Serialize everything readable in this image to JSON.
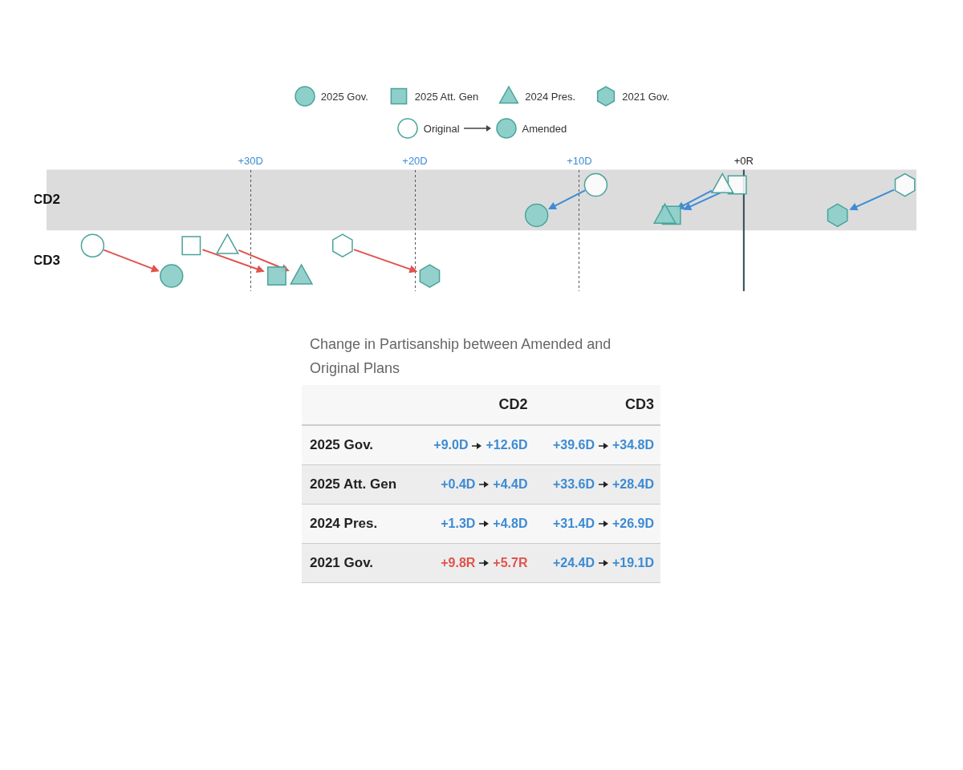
{
  "chart_data": [
    {
      "type": "scatter",
      "categories": [
        "CD2",
        "CD3"
      ],
      "orientation": "horizontal",
      "xlim": [
        -42.4,
        10.5
      ],
      "xticks": [
        {
          "value": -30,
          "label": "+30D"
        },
        {
          "value": -20,
          "label": "+20D"
        },
        {
          "value": -10,
          "label": "+10D"
        },
        {
          "value": 0,
          "label": "+0R"
        }
      ],
      "grid": "x",
      "ref_lines": [
        {
          "axis": "x",
          "value": 0,
          "color": "#2f4a55"
        }
      ],
      "bands": [
        {
          "axis": "y",
          "from": "CD2",
          "to": "CD2",
          "color": "#dcdcdc"
        }
      ],
      "legend": "top",
      "annotations": [
        "Original",
        "Amended"
      ],
      "series": [
        {
          "name": "2025 Gov.",
          "marker": "circle",
          "color": "#8fcfc9",
          "values": [
            -12.6,
            -34.8
          ]
        },
        {
          "name": "2025 Att. Gen",
          "marker": "square",
          "color": "#8fcfc9",
          "values": [
            -4.4,
            -28.4
          ]
        },
        {
          "name": "2024 Pres.",
          "marker": "triangle",
          "color": "#8fcfc9",
          "values": [
            -4.8,
            -26.9
          ]
        },
        {
          "name": "2021 Gov.",
          "color": "#8fcfc9",
          "values": [
            5.7,
            -19.1
          ]
        },
        {
          "marker": "circle",
          "color": "#ffffff",
          "values": [
            -9.0,
            -39.6
          ]
        },
        {
          "marker": "square",
          "color": "#ffffff",
          "values": [
            -0.4,
            -33.6
          ]
        },
        {
          "marker": "triangle",
          "color": "#ffffff",
          "values": [
            -1.3,
            -31.4
          ]
        },
        {
          "color": "#ffffff",
          "values": [
            9.8,
            -24.4
          ]
        }
      ]
    },
    {
      "type": "other",
      "title": "Change in Partisanship between Amended and Original Plans",
      "categories": [
        "CD2",
        "CD3"
      ],
      "y_categories": [
        "2025 Gov.",
        "2025 Att. Gen",
        "2024 Pres.",
        "2021 Gov."
      ],
      "annotations": [
        "+9.0D",
        "+12.6D",
        "+39.6D",
        "+34.8D",
        "+0.4D",
        "+4.4D",
        "+33.6D",
        "+28.4D",
        "+1.3D",
        "+4.8D",
        "+31.4D",
        "+26.9D",
        "+9.8R",
        "+5.7R",
        "+24.4D",
        "+19.1D"
      ]
    }
  ]
}
